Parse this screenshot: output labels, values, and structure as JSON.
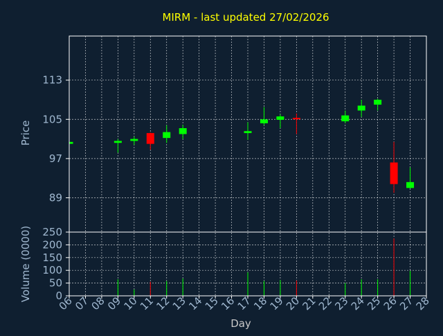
{
  "chart_data": {
    "type": "candlestick",
    "title": "MIRM - last updated 27/02/2026",
    "xlabel": "Day",
    "price_axis": {
      "label": "Price",
      "ticks": [
        89,
        97,
        105,
        113
      ],
      "range": [
        82,
        122
      ]
    },
    "volume_axis": {
      "label": "Volume (0000)",
      "ticks": [
        0,
        50,
        100,
        150,
        200,
        250
      ],
      "range": [
        0,
        250
      ]
    },
    "x_ticks": [
      "06",
      "07",
      "08",
      "09",
      "10",
      "11",
      "12",
      "13",
      "14",
      "15",
      "16",
      "17",
      "18",
      "19",
      "20",
      "21",
      "22",
      "23",
      "24",
      "25",
      "26",
      "27",
      "28"
    ],
    "grid": true,
    "colors": {
      "up": "#00ff00",
      "down": "#ff0000",
      "axis": "#ffffff",
      "grid": "#ffffff",
      "title": "#ffff00",
      "label": "#a0b8d0",
      "background": "#0f1f30"
    },
    "candles": [
      {
        "day": "06",
        "open": 100.0,
        "high": 100.4,
        "low": 99.8,
        "close": 100.4,
        "volume": 0
      },
      {
        "day": "09",
        "open": 100.2,
        "high": 101.0,
        "low": 98.2,
        "close": 100.6,
        "volume": 65
      },
      {
        "day": "10",
        "open": 100.6,
        "high": 101.5,
        "low": 99.8,
        "close": 101.0,
        "volume": 25
      },
      {
        "day": "11",
        "open": 102.2,
        "high": 102.3,
        "low": 98.8,
        "close": 100.0,
        "volume": 55
      },
      {
        "day": "12",
        "open": 101.2,
        "high": 103.8,
        "low": 100.2,
        "close": 102.4,
        "volume": 58
      },
      {
        "day": "13",
        "open": 102.0,
        "high": 103.9,
        "low": 101.0,
        "close": 103.2,
        "volume": 68
      },
      {
        "day": "17",
        "open": 102.2,
        "high": 104.4,
        "low": 100.8,
        "close": 102.6,
        "volume": 92
      },
      {
        "day": "18",
        "open": 104.2,
        "high": 107.5,
        "low": 103.8,
        "close": 105.0,
        "volume": 58
      },
      {
        "day": "19",
        "open": 104.9,
        "high": 106.0,
        "low": 103.2,
        "close": 105.6,
        "volume": 62
      },
      {
        "day": "20",
        "open": 105.3,
        "high": 106.2,
        "low": 102.0,
        "close": 105.2,
        "volume": 60
      },
      {
        "day": "23",
        "open": 104.6,
        "high": 106.8,
        "low": 104.2,
        "close": 105.8,
        "volume": 50
      },
      {
        "day": "24",
        "open": 106.8,
        "high": 109.0,
        "low": 105.5,
        "close": 107.8,
        "volume": 65
      },
      {
        "day": "25",
        "open": 108.0,
        "high": 109.2,
        "low": 106.8,
        "close": 109.0,
        "volume": 65
      },
      {
        "day": "26",
        "open": 96.2,
        "high": 100.4,
        "low": 90.0,
        "close": 91.8,
        "volume": 225
      },
      {
        "day": "27",
        "open": 91.0,
        "high": 95.2,
        "low": 90.9,
        "close": 92.2,
        "volume": 98
      }
    ]
  }
}
